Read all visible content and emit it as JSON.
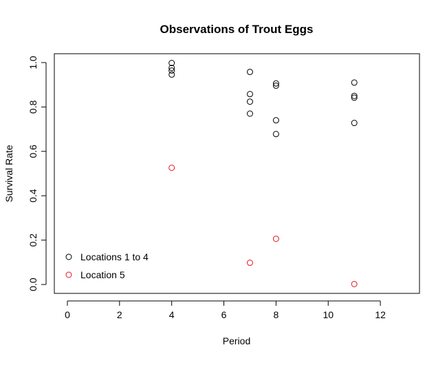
{
  "chart_data": {
    "type": "scatter",
    "title": "Observations of Trout Eggs",
    "xlabel": "Period",
    "ylabel": "Survival Rate",
    "xlim": [
      -0.5,
      13.5
    ],
    "ylim": [
      -0.04,
      1.04
    ],
    "xticks": [
      0,
      2,
      4,
      6,
      8,
      10,
      12
    ],
    "yticks": [
      0.0,
      0.2,
      0.4,
      0.6,
      0.8,
      1.0
    ],
    "xtick_labels": [
      "0",
      "2",
      "4",
      "6",
      "8",
      "10",
      "12"
    ],
    "ytick_labels": [
      "0.0",
      "0.2",
      "0.4",
      "0.6",
      "0.8",
      "1.0"
    ],
    "grid": false,
    "legend_position": "bottom-left",
    "series": [
      {
        "name": "Locations 1 to 4",
        "color": "#000000",
        "marker": "open-circle",
        "points": [
          {
            "x": 4,
            "y": 0.998
          },
          {
            "x": 4,
            "y": 0.976
          },
          {
            "x": 4,
            "y": 0.964
          },
          {
            "x": 4,
            "y": 0.946
          },
          {
            "x": 7,
            "y": 0.958
          },
          {
            "x": 7,
            "y": 0.858
          },
          {
            "x": 7,
            "y": 0.824
          },
          {
            "x": 7,
            "y": 0.77
          },
          {
            "x": 8,
            "y": 0.906
          },
          {
            "x": 8,
            "y": 0.896
          },
          {
            "x": 8,
            "y": 0.74
          },
          {
            "x": 8,
            "y": 0.678
          },
          {
            "x": 11,
            "y": 0.91
          },
          {
            "x": 11,
            "y": 0.85
          },
          {
            "x": 11,
            "y": 0.842
          },
          {
            "x": 11,
            "y": 0.728
          }
        ]
      },
      {
        "name": "Location 5",
        "color": "#e8121c",
        "marker": "open-circle",
        "points": [
          {
            "x": 4,
            "y": 0.526
          },
          {
            "x": 7,
            "y": 0.098
          },
          {
            "x": 8,
            "y": 0.206
          },
          {
            "x": 11,
            "y": 0.002
          }
        ]
      }
    ]
  }
}
